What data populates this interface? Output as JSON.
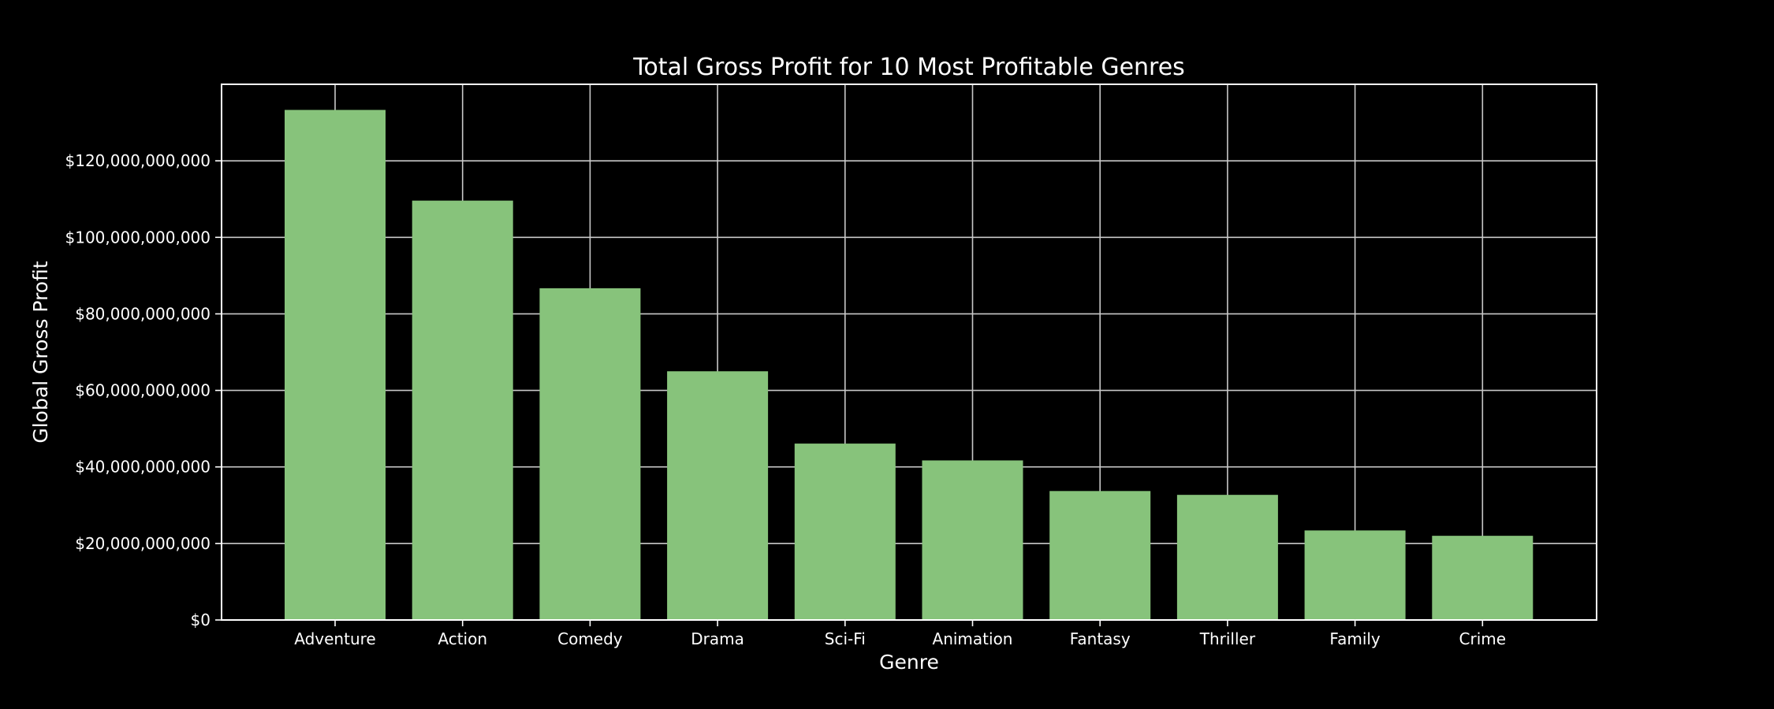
{
  "chart_data": {
    "type": "bar",
    "title": "Total Gross Profit for 10 Most Profitable Genres",
    "xlabel": "Genre",
    "ylabel": "Global Gross Profit",
    "categories": [
      "Adventure",
      "Action",
      "Comedy",
      "Drama",
      "Sci-Fi",
      "Animation",
      "Fantasy",
      "Thriller",
      "Family",
      "Crime"
    ],
    "values": [
      133300000000,
      109600000000,
      86700000000,
      65000000000,
      46100000000,
      41700000000,
      33700000000,
      32700000000,
      23400000000,
      22000000000
    ],
    "ylim": [
      0,
      140000000000
    ],
    "yticks": [
      0,
      20000000000,
      40000000000,
      60000000000,
      80000000000,
      100000000000,
      120000000000
    ],
    "ytick_labels": [
      "$0",
      "$20,000,000,000",
      "$40,000,000,000",
      "$60,000,000,000",
      "$80,000,000,000",
      "$100,000,000,000",
      "$120,000,000,000"
    ],
    "grid": true,
    "colors": {
      "background": "#000000",
      "bar": "#87c37b",
      "grid": "#c8c8c8",
      "axes": "#ffffff",
      "text": "#ffffff"
    }
  }
}
